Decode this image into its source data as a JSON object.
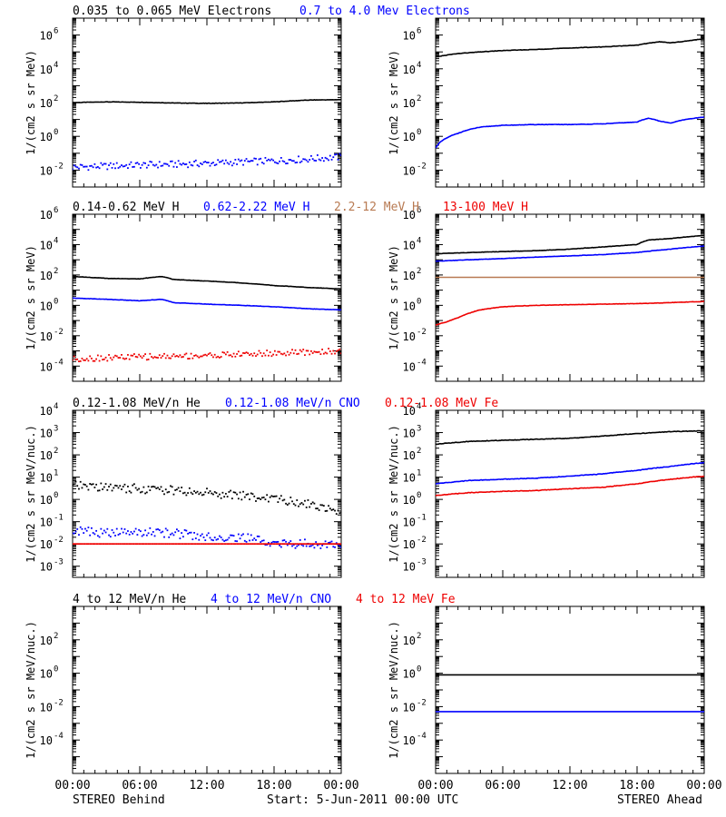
{
  "colors": {
    "black": "#000000",
    "blue": "#0000ff",
    "brown": "#b87a52",
    "red": "#ee0000"
  },
  "headers": [
    [
      {
        "text": "0.035 to 0.065 MeV Electrons",
        "color": "#000000"
      },
      {
        "text": "0.7 to 4.0 Mev Electrons",
        "color": "#0000ff"
      }
    ],
    [
      {
        "text": "0.14-0.62 MeV H",
        "color": "#000000"
      },
      {
        "text": "0.62-2.22 MeV H",
        "color": "#0000ff"
      },
      {
        "text": "2.2-12 MeV H",
        "color": "#b87a52"
      },
      {
        "text": "13-100 MeV H",
        "color": "#ee0000"
      }
    ],
    [
      {
        "text": "0.12-1.08 MeV/n He",
        "color": "#000000"
      },
      {
        "text": "0.12-1.08 MeV/n CNO",
        "color": "#0000ff"
      },
      {
        "text": "0.12-1.08 MeV Fe",
        "color": "#ee0000"
      }
    ],
    [
      {
        "text": "4 to 12 MeV/n He",
        "color": "#000000"
      },
      {
        "text": "4 to 12 MeV/n CNO",
        "color": "#0000ff"
      },
      {
        "text": "4 to 12 MeV Fe",
        "color": "#ee0000"
      }
    ]
  ],
  "footer": {
    "left": "STEREO Behind",
    "center": "Start:  5-Jun-2011 00:00 UTC",
    "right": "STEREO Ahead"
  },
  "chart_data": [
    {
      "type": "line",
      "row": 0,
      "col": 0,
      "spacecraft": "STEREO Behind",
      "ylabel": "1/(cm2 s sr MeV)",
      "yscale": "log",
      "ylim": [
        -3,
        7
      ],
      "yticks": [
        {
          "exp": -2,
          "label": "10^-2"
        },
        {
          "exp": 0,
          "label": "10^0"
        },
        {
          "exp": 2,
          "label": "10^2"
        },
        {
          "exp": 4,
          "label": "10^4"
        },
        {
          "exp": 6,
          "label": "10^6"
        }
      ],
      "xlim": [
        0,
        24
      ],
      "xticks": [
        "00:00",
        "06:00",
        "12:00",
        "18:00",
        "00:00"
      ],
      "series": [
        {
          "name": "0.035 to 0.065 MeV Electrons",
          "color": "#000000",
          "style": "line",
          "x": [
            0,
            3,
            6,
            9,
            12,
            15,
            18,
            21,
            24
          ],
          "y": [
            100,
            110,
            105,
            95,
            90,
            95,
            110,
            140,
            150
          ]
        },
        {
          "name": "0.7 to 4.0 Mev Electrons",
          "color": "#0000ff",
          "style": "points",
          "x": [
            0,
            3,
            6,
            9,
            12,
            15,
            18,
            21,
            24
          ],
          "y": [
            0.015,
            0.017,
            0.02,
            0.022,
            0.025,
            0.03,
            0.035,
            0.045,
            0.06
          ]
        }
      ]
    },
    {
      "type": "line",
      "row": 0,
      "col": 1,
      "spacecraft": "STEREO Ahead",
      "ylabel": "1/(cm2 s sr MeV)",
      "yscale": "log",
      "ylim": [
        -3,
        7
      ],
      "yticks": [
        {
          "exp": -2,
          "label": "10^-2"
        },
        {
          "exp": 0,
          "label": "10^0"
        },
        {
          "exp": 2,
          "label": "10^2"
        },
        {
          "exp": 4,
          "label": "10^4"
        },
        {
          "exp": 6,
          "label": "10^6"
        }
      ],
      "xlim": [
        0,
        24
      ],
      "xticks": [
        "00:00",
        "06:00",
        "12:00",
        "18:00",
        "00:00"
      ],
      "series": [
        {
          "name": "0.035 to 0.065 MeV Electrons",
          "color": "#000000",
          "style": "line",
          "x": [
            0,
            2,
            4,
            6,
            9,
            12,
            15,
            18,
            20,
            21,
            22,
            24
          ],
          "y": [
            50000,
            80000,
            100000,
            120000,
            140000,
            170000,
            200000,
            250000,
            400000,
            350000,
            400000,
            600000
          ]
        },
        {
          "name": "0.7 to 4.0 Mev Electrons",
          "color": "#0000ff",
          "style": "line",
          "x": [
            0,
            1,
            2,
            3,
            4,
            6,
            9,
            12,
            15,
            18,
            19,
            20,
            21,
            22,
            24
          ],
          "y": [
            0.2,
            0.8,
            1.5,
            2.5,
            3.5,
            4.5,
            5,
            5,
            5.5,
            7,
            12,
            8,
            6,
            9,
            14
          ]
        }
      ]
    },
    {
      "type": "line",
      "row": 1,
      "col": 0,
      "spacecraft": "STEREO Behind",
      "ylabel": "1/(cm2 s sr MeV)",
      "yscale": "log",
      "ylim": [
        -5,
        6
      ],
      "yticks": [
        {
          "exp": -4,
          "label": "10^-4"
        },
        {
          "exp": -2,
          "label": "10^-2"
        },
        {
          "exp": 0,
          "label": "10^0"
        },
        {
          "exp": 2,
          "label": "10^2"
        },
        {
          "exp": 4,
          "label": "10^4"
        },
        {
          "exp": 6,
          "label": "10^6"
        }
      ],
      "xlim": [
        0,
        24
      ],
      "xticks": [
        "00:00",
        "06:00",
        "12:00",
        "18:00",
        "00:00"
      ],
      "series": [
        {
          "name": "0.14-0.62 MeV H",
          "color": "#000000",
          "style": "line",
          "x": [
            0,
            3,
            6,
            8,
            9,
            12,
            15,
            18,
            21,
            24
          ],
          "y": [
            80,
            60,
            55,
            80,
            50,
            40,
            30,
            20,
            15,
            12
          ]
        },
        {
          "name": "0.62-2.22 MeV H",
          "color": "#0000ff",
          "style": "line",
          "x": [
            0,
            3,
            6,
            8,
            9,
            12,
            15,
            18,
            21,
            24
          ],
          "y": [
            3,
            2.5,
            2,
            2.5,
            1.5,
            1.2,
            1,
            0.8,
            0.6,
            0.5
          ]
        },
        {
          "name": "13-100 MeV H",
          "color": "#ee0000",
          "style": "points",
          "x": [
            0,
            3,
            6,
            9,
            12,
            15,
            18,
            21,
            24
          ],
          "y": [
            0.0003,
            0.00035,
            0.0004,
            0.00045,
            0.0005,
            0.0006,
            0.0007,
            0.0008,
            0.001
          ]
        }
      ]
    },
    {
      "type": "line",
      "row": 1,
      "col": 1,
      "spacecraft": "STEREO Ahead",
      "ylabel": "1/(cm2 s sr MeV)",
      "yscale": "log",
      "ylim": [
        -5,
        6
      ],
      "yticks": [
        {
          "exp": -4,
          "label": "10^-4"
        },
        {
          "exp": -2,
          "label": "10^-2"
        },
        {
          "exp": 0,
          "label": "10^0"
        },
        {
          "exp": 2,
          "label": "10^2"
        },
        {
          "exp": 4,
          "label": "10^4"
        },
        {
          "exp": 6,
          "label": "10^6"
        }
      ],
      "xlim": [
        0,
        24
      ],
      "xticks": [
        "00:00",
        "06:00",
        "12:00",
        "18:00",
        "00:00"
      ],
      "series": [
        {
          "name": "0.14-0.62 MeV H",
          "color": "#000000",
          "style": "line",
          "x": [
            0,
            3,
            6,
            9,
            12,
            15,
            18,
            19,
            21,
            24
          ],
          "y": [
            2500,
            3000,
            3500,
            4000,
            5000,
            7000,
            10000,
            20000,
            25000,
            40000
          ]
        },
        {
          "name": "0.62-2.22 MeV H",
          "color": "#0000ff",
          "style": "line",
          "x": [
            0,
            3,
            6,
            9,
            12,
            15,
            18,
            21,
            24
          ],
          "y": [
            800,
            1000,
            1200,
            1500,
            1800,
            2200,
            3000,
            5000,
            8000
          ]
        },
        {
          "name": "2.2-12 MeV H",
          "color": "#b87a52",
          "style": "line",
          "x": [
            0,
            24
          ],
          "y": [
            70,
            70
          ]
        },
        {
          "name": "13-100 MeV H",
          "color": "#ee0000",
          "style": "line",
          "x": [
            0,
            1,
            2,
            3,
            4,
            6,
            9,
            12,
            15,
            18,
            21,
            24
          ],
          "y": [
            0.05,
            0.08,
            0.15,
            0.3,
            0.5,
            0.8,
            1.0,
            1.1,
            1.2,
            1.3,
            1.5,
            1.8
          ]
        }
      ]
    },
    {
      "type": "line",
      "row": 2,
      "col": 0,
      "spacecraft": "STEREO Behind",
      "ylabel": "1/(cm2 s sr MeV/nuc.)",
      "yscale": "log",
      "ylim": [
        -3.5,
        4
      ],
      "yticks": [
        {
          "exp": -3,
          "label": "10^-3"
        },
        {
          "exp": -2,
          "label": "10^-2"
        },
        {
          "exp": -1,
          "label": "10^-1"
        },
        {
          "exp": 0,
          "label": "10^0"
        },
        {
          "exp": 1,
          "label": "10^1"
        },
        {
          "exp": 2,
          "label": "10^2"
        },
        {
          "exp": 3,
          "label": "10^3"
        },
        {
          "exp": 4,
          "label": "10^4"
        }
      ],
      "xlim": [
        0,
        24
      ],
      "xticks": [
        "00:00",
        "06:00",
        "12:00",
        "18:00",
        "00:00"
      ],
      "series": [
        {
          "name": "0.12-1.08 MeV/n He",
          "color": "#000000",
          "style": "points",
          "x": [
            0,
            3,
            6,
            9,
            12,
            15,
            18,
            21,
            24
          ],
          "y": [
            4,
            3.5,
            3,
            2.5,
            2,
            1.5,
            1,
            0.6,
            0.3
          ]
        },
        {
          "name": "0.12-1.08 MeV/n CNO",
          "color": "#0000ff",
          "style": "points",
          "x": [
            0,
            3,
            6,
            9,
            12,
            15,
            18,
            21,
            24
          ],
          "y": [
            0.04,
            0.03,
            0.035,
            0.03,
            0.02,
            0.02,
            0.01,
            0.01,
            0.01
          ]
        },
        {
          "name": "0.12-1.08 MeV Fe",
          "color": "#ee0000",
          "style": "points",
          "x": [
            0,
            24
          ],
          "y": [
            0.01,
            0.01
          ]
        }
      ]
    },
    {
      "type": "line",
      "row": 2,
      "col": 1,
      "spacecraft": "STEREO Ahead",
      "ylabel": "1/(cm2 s sr MeV/nuc.)",
      "yscale": "log",
      "ylim": [
        -3.5,
        4
      ],
      "yticks": [
        {
          "exp": -3,
          "label": "10^-3"
        },
        {
          "exp": -2,
          "label": "10^-2"
        },
        {
          "exp": -1,
          "label": "10^-1"
        },
        {
          "exp": 0,
          "label": "10^0"
        },
        {
          "exp": 1,
          "label": "10^1"
        },
        {
          "exp": 2,
          "label": "10^2"
        },
        {
          "exp": 3,
          "label": "10^3"
        },
        {
          "exp": 4,
          "label": "10^4"
        }
      ],
      "xlim": [
        0,
        24
      ],
      "xticks": [
        "00:00",
        "06:00",
        "12:00",
        "18:00",
        "00:00"
      ],
      "series": [
        {
          "name": "0.12-1.08 MeV/n He",
          "color": "#000000",
          "style": "line",
          "x": [
            0,
            3,
            6,
            9,
            12,
            15,
            18,
            21,
            24
          ],
          "y": [
            300,
            400,
            450,
            500,
            550,
            700,
            900,
            1100,
            1200
          ]
        },
        {
          "name": "0.12-1.08 MeV/n CNO",
          "color": "#0000ff",
          "style": "line",
          "x": [
            0,
            3,
            6,
            9,
            12,
            15,
            18,
            21,
            24
          ],
          "y": [
            5,
            7,
            8,
            9,
            11,
            14,
            20,
            30,
            45
          ]
        },
        {
          "name": "0.12-1.08 MeV Fe",
          "color": "#ee0000",
          "style": "line",
          "x": [
            0,
            3,
            6,
            9,
            12,
            15,
            18,
            21,
            24
          ],
          "y": [
            1.5,
            2,
            2.3,
            2.5,
            3,
            3.5,
            5,
            8,
            11
          ]
        }
      ]
    },
    {
      "type": "line",
      "row": 3,
      "col": 0,
      "spacecraft": "STEREO Behind",
      "ylabel": "1/(cm2 s sr MeV/nuc.)",
      "yscale": "log",
      "ylim": [
        -6,
        4
      ],
      "yticks": [
        {
          "exp": -4,
          "label": "10^-4"
        },
        {
          "exp": -2,
          "label": "10^-2"
        },
        {
          "exp": 0,
          "label": "10^0"
        },
        {
          "exp": 2,
          "label": "10^2"
        }
      ],
      "xlim": [
        0,
        24
      ],
      "xticks": [
        "00:00",
        "06:00",
        "12:00",
        "18:00",
        "00:00"
      ],
      "series": []
    },
    {
      "type": "line",
      "row": 3,
      "col": 1,
      "spacecraft": "STEREO Ahead",
      "ylabel": "1/(cm2 s sr MeV/nuc.)",
      "yscale": "log",
      "ylim": [
        -6,
        4
      ],
      "yticks": [
        {
          "exp": -4,
          "label": "10^-4"
        },
        {
          "exp": -2,
          "label": "10^-2"
        },
        {
          "exp": 0,
          "label": "10^0"
        },
        {
          "exp": 2,
          "label": "10^2"
        }
      ],
      "xlim": [
        0,
        24
      ],
      "xticks": [
        "00:00",
        "06:00",
        "12:00",
        "18:00",
        "00:00"
      ],
      "series": [
        {
          "name": "4 to 12 MeV/n He",
          "color": "#000000",
          "style": "line",
          "x": [
            0,
            24
          ],
          "y": [
            0.8,
            0.8
          ]
        },
        {
          "name": "4 to 12 MeV/n CNO",
          "color": "#0000ff",
          "style": "line",
          "x": [
            0,
            24
          ],
          "y": [
            0.005,
            0.005
          ]
        }
      ]
    }
  ]
}
